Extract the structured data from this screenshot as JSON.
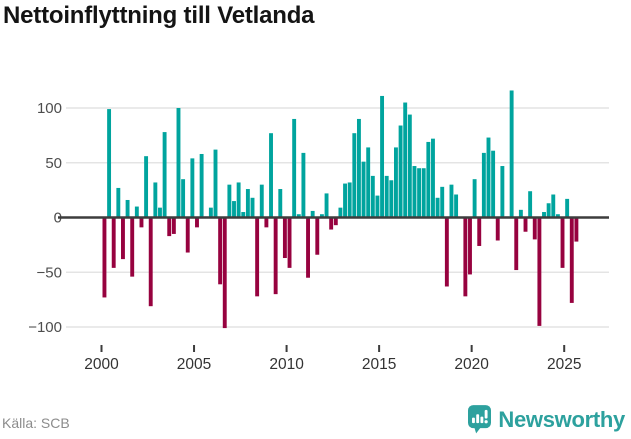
{
  "header": {
    "title": "Nettoinflyttning till Vetlanda"
  },
  "footer": {
    "source": "Källa: SCB",
    "brand": "Newsworthy"
  },
  "colors": {
    "positive_bar": "#00a49e",
    "negative_bar": "#97023f",
    "zero_line": "#3d3d3d",
    "gridline": "#e4e4e4",
    "brand_teal": "#2da19e"
  },
  "chart_data": {
    "type": "bar",
    "title": "Nettoinflyttning till Vetlanda",
    "xlabel": "",
    "ylabel": "",
    "frequency": "quarterly",
    "x_start": "2000-Q1",
    "x_end": "2025-Q4",
    "x_tick_labels": [
      "2000",
      "2005",
      "2010",
      "2015",
      "2020",
      "2025"
    ],
    "y_tick_labels": [
      "100",
      "50",
      "0",
      "−50",
      "−100"
    ],
    "y_ticks": [
      100,
      50,
      0,
      -50,
      -100
    ],
    "ylim": [
      -115,
      125
    ],
    "grid": "horizontal",
    "legend": "none",
    "values": [
      -73,
      99,
      -46,
      27,
      -38,
      16,
      -54,
      10,
      -9,
      56,
      -81,
      32,
      9,
      78,
      -17,
      -15,
      100,
      35,
      -32,
      54,
      -9,
      58,
      1,
      9,
      62,
      -61,
      -101,
      30,
      15,
      32,
      5,
      26,
      18,
      -72,
      30,
      -9,
      77,
      -70,
      26,
      -37,
      -46,
      90,
      3,
      59,
      -55,
      6,
      -34,
      3,
      22,
      -11,
      -7,
      9,
      31,
      32,
      77,
      90,
      51,
      64,
      38,
      20,
      111,
      38,
      34,
      64,
      84,
      105,
      94,
      47,
      45,
      45,
      69,
      72,
      18,
      28,
      -63,
      30,
      21,
      0,
      -72,
      -52,
      35,
      -26,
      59,
      73,
      61,
      -21,
      47,
      1,
      116,
      -48,
      7,
      -13,
      24,
      -20,
      -99,
      5,
      13,
      21,
      3,
      -46,
      17,
      -78,
      -22,
      0
    ]
  }
}
